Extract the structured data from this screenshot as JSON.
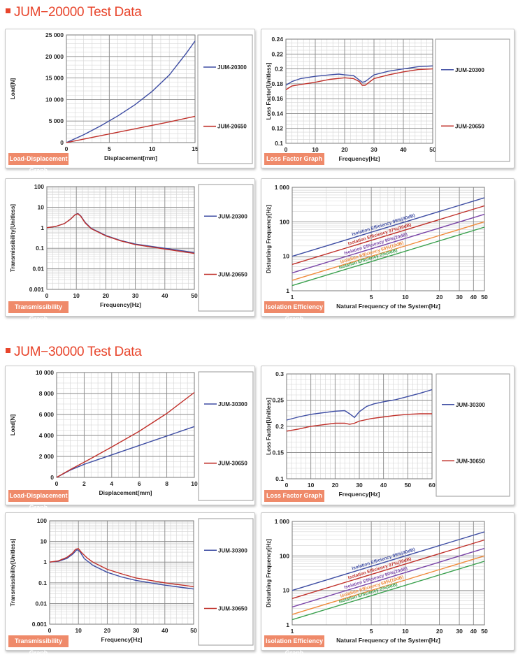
{
  "sections": [
    {
      "title": "JUM−20000 Test Data"
    },
    {
      "title": "JUM−30000 Test Data"
    }
  ],
  "colors": {
    "blue": "#3e4da3",
    "red": "#c0302a",
    "purple": "#7a45a8",
    "orange": "#f08a3a",
    "green": "#39a04d",
    "accent": "#e8452c",
    "tag": "#ef8a6a"
  },
  "chart_data": [
    {
      "id": "c1",
      "type": "line",
      "tag": "Load-Displacement Graph",
      "xscale": "linear",
      "yscale": "linear",
      "xlabel": "Displacement[mm]",
      "ylabel": "Load[N]",
      "xlim": [
        0,
        15
      ],
      "ylim": [
        0,
        25000
      ],
      "xticks": [
        0,
        5,
        10,
        15
      ],
      "xtick_labels": [
        "0",
        "5",
        "10",
        "15"
      ],
      "yticks": [
        0,
        5000,
        10000,
        15000,
        20000,
        25000
      ],
      "ytick_labels": [
        "0",
        "5 000",
        "10 000",
        "15 000",
        "20 000",
        "25 000"
      ],
      "minor_x": 1,
      "minor_y": 1000,
      "series": [
        {
          "name": "JUM-20300",
          "color": "#3e4da3",
          "x": [
            0,
            2,
            4,
            6,
            8,
            10,
            12,
            14,
            15
          ],
          "y": [
            0,
            1800,
            3900,
            6200,
            8800,
            11900,
            15700,
            20800,
            23600
          ]
        },
        {
          "name": "JUM-20650",
          "color": "#c0302a",
          "x": [
            0,
            3,
            6,
            9,
            12,
            15
          ],
          "y": [
            0,
            1200,
            2400,
            3600,
            4800,
            6100
          ]
        }
      ],
      "legend": [
        "JUM-20300",
        "JUM-20650"
      ]
    },
    {
      "id": "c2",
      "type": "line",
      "tag": "Loss Factor Graph",
      "xscale": "linear",
      "yscale": "linear",
      "xlabel": "Frequency[Hz]",
      "ylabel": "Loss Factor[Unitless]",
      "xlim": [
        0,
        50
      ],
      "ylim": [
        0.1,
        0.24
      ],
      "xticks": [
        0,
        10,
        20,
        30,
        40,
        50
      ],
      "xtick_labels": [
        "0",
        "10",
        "20",
        "30",
        "40",
        "50"
      ],
      "yticks": [
        0.1,
        0.12,
        0.14,
        0.16,
        0.18,
        0.2,
        0.22,
        0.24
      ],
      "ytick_labels": [
        "0.1",
        "0.12",
        "0.14",
        "0.16",
        "0.18",
        "0.2",
        "0.22",
        "0.24"
      ],
      "minor_x": 2,
      "minor_y": 0.005,
      "series": [
        {
          "name": "JUM-20300",
          "color": "#3e4da3",
          "x": [
            0,
            2,
            5,
            10,
            15,
            18,
            20,
            23,
            25,
            26,
            27,
            28,
            30,
            35,
            40,
            45,
            50
          ],
          "y": [
            0.178,
            0.183,
            0.187,
            0.19,
            0.192,
            0.193,
            0.192,
            0.191,
            0.185,
            0.182,
            0.183,
            0.186,
            0.192,
            0.197,
            0.2,
            0.203,
            0.204
          ]
        },
        {
          "name": "JUM-20650",
          "color": "#c0302a",
          "x": [
            0,
            2,
            5,
            10,
            15,
            20,
            23,
            25,
            26,
            27,
            28,
            30,
            35,
            40,
            45,
            50
          ],
          "y": [
            0.172,
            0.177,
            0.179,
            0.182,
            0.186,
            0.188,
            0.187,
            0.183,
            0.178,
            0.178,
            0.181,
            0.187,
            0.192,
            0.196,
            0.199,
            0.2
          ]
        }
      ],
      "legend": [
        "JUM-20300",
        "JUM-20650"
      ]
    },
    {
      "id": "c3",
      "type": "line",
      "tag": "Transmissibility Graph",
      "xscale": "linear",
      "yscale": "log",
      "xlabel": "Frequency[Hz]",
      "ylabel": "Transmissibility[Unitless]",
      "xlim": [
        0,
        50
      ],
      "ylim": [
        0.001,
        100
      ],
      "xticks": [
        0,
        10,
        20,
        30,
        40,
        50
      ],
      "xtick_labels": [
        "0",
        "10",
        "20",
        "30",
        "40",
        "50"
      ],
      "yticks": [
        0.001,
        0.01,
        0.1,
        1,
        10,
        100
      ],
      "ytick_labels": [
        "0.001",
        "0.01",
        "0.1",
        "1",
        "10",
        "100"
      ],
      "minor_x": 2,
      "series": [
        {
          "name": "JUM-20300",
          "color": "#3e4da3",
          "x": [
            0,
            3,
            6,
            8,
            9.5,
            10.5,
            11.5,
            13,
            15,
            20,
            25,
            30,
            40,
            50
          ],
          "y": [
            1,
            1.15,
            1.6,
            2.6,
            4.2,
            5.0,
            3.8,
            1.8,
            0.95,
            0.42,
            0.24,
            0.16,
            0.1,
            0.062
          ]
        },
        {
          "name": "JUM-20650",
          "color": "#c0302a",
          "x": [
            0,
            3,
            6,
            8,
            9.5,
            10.5,
            11.5,
            13,
            15,
            20,
            25,
            30,
            40,
            50
          ],
          "y": [
            1,
            1.15,
            1.6,
            2.6,
            4.2,
            4.8,
            3.6,
            1.7,
            0.9,
            0.4,
            0.23,
            0.15,
            0.092,
            0.056
          ]
        }
      ],
      "legend": [
        "JUM-20300",
        "JUM-20650"
      ]
    },
    {
      "id": "c4",
      "type": "line",
      "tag": "Isolation Efficiency Graph",
      "xscale": "log",
      "yscale": "log",
      "xlabel": "Natural Frequency of the System[Hz]",
      "ylabel": "Disturbing Frequency[Hz]",
      "xlim": [
        1,
        50
      ],
      "ylim": [
        1,
        1000
      ],
      "xticks": [
        1,
        5,
        10,
        20,
        30,
        40,
        50
      ],
      "xtick_labels": [
        "1",
        "5",
        "10",
        "20",
        "30",
        "40",
        "50"
      ],
      "yticks": [
        1,
        10,
        100,
        1000
      ],
      "ytick_labels": [
        "1",
        "10",
        "100",
        "1 000"
      ],
      "series": [
        {
          "name": "Isolation Efficiency 99%(40dB)",
          "color": "#3e4da3",
          "x": [
            1,
            50
          ],
          "y": [
            10,
            500
          ]
        },
        {
          "name": "Isolation Efficiency 97%(30dB)",
          "color": "#c0302a",
          "x": [
            1,
            50
          ],
          "y": [
            5.8,
            290
          ]
        },
        {
          "name": "Isolation Efficiency 90%(20dB)",
          "color": "#7a45a8",
          "x": [
            1,
            50
          ],
          "y": [
            3.3,
            165
          ]
        },
        {
          "name": "Isolation Efficiency 68%(10dB)",
          "color": "#f08a3a",
          "x": [
            1,
            50
          ],
          "y": [
            2.0,
            100
          ]
        },
        {
          "name": "Isolation Efficiency 0%(0dB)",
          "color": "#39a04d",
          "x": [
            1,
            50
          ],
          "y": [
            1.41,
            70
          ]
        }
      ]
    },
    {
      "id": "c5",
      "type": "line",
      "tag": "Load-Displacement Graph",
      "xscale": "linear",
      "yscale": "linear",
      "xlabel": "Displacement[mm]",
      "ylabel": "Load[N]",
      "xlim": [
        0,
        10
      ],
      "ylim": [
        0,
        10000
      ],
      "xticks": [
        0,
        2,
        4,
        6,
        8,
        10
      ],
      "xtick_labels": [
        "0",
        "2",
        "4",
        "6",
        "8",
        "10"
      ],
      "yticks": [
        0,
        2000,
        4000,
        6000,
        8000,
        10000
      ],
      "ytick_labels": [
        "0",
        "2 000",
        "4 000",
        "6 000",
        "8 000",
        "10 000"
      ],
      "minor_x": 0.5,
      "minor_y": 500,
      "series": [
        {
          "name": "JUM-30300",
          "color": "#3e4da3",
          "x": [
            0,
            1,
            2,
            4,
            6,
            8,
            10
          ],
          "y": [
            0,
            700,
            1250,
            2150,
            3050,
            3950,
            4850
          ]
        },
        {
          "name": "JUM-30650",
          "color": "#c0302a",
          "x": [
            0,
            1,
            2,
            4,
            6,
            8,
            10
          ],
          "y": [
            0,
            750,
            1450,
            2900,
            4400,
            6100,
            8100
          ]
        }
      ],
      "legend": [
        "JUM-30300",
        "JUM-30650"
      ]
    },
    {
      "id": "c6",
      "type": "line",
      "tag": "Loss Factor Graph",
      "xscale": "linear",
      "yscale": "linear",
      "xlabel": "Frequency[Hz]",
      "ylabel": "Loss Factor[Unitless]",
      "xlim": [
        0,
        60
      ],
      "ylim": [
        0.1,
        0.3
      ],
      "xticks": [
        0,
        10,
        20,
        30,
        40,
        50,
        60
      ],
      "xtick_labels": [
        "0",
        "10",
        "20",
        "30",
        "40",
        "50",
        "60"
      ],
      "yticks": [
        0.1,
        0.15,
        0.2,
        0.25,
        0.3
      ],
      "ytick_labels": [
        "0.1",
        "0.15",
        "0.2",
        "0.25",
        "0.3"
      ],
      "minor_x": 2,
      "minor_y": 0.01,
      "series": [
        {
          "name": "JUM-30300",
          "color": "#3e4da3",
          "x": [
            0,
            5,
            10,
            15,
            20,
            24,
            26,
            28,
            30,
            33,
            36,
            40,
            45,
            50,
            55,
            60
          ],
          "y": [
            0.212,
            0.218,
            0.223,
            0.226,
            0.229,
            0.23,
            0.224,
            0.217,
            0.228,
            0.238,
            0.243,
            0.247,
            0.251,
            0.257,
            0.263,
            0.27
          ]
        },
        {
          "name": "JUM-30650",
          "color": "#c0302a",
          "x": [
            0,
            5,
            10,
            15,
            20,
            24,
            26,
            28,
            30,
            35,
            40,
            45,
            50,
            55,
            60
          ],
          "y": [
            0.191,
            0.195,
            0.2,
            0.203,
            0.206,
            0.206,
            0.204,
            0.206,
            0.21,
            0.215,
            0.218,
            0.221,
            0.223,
            0.224,
            0.224
          ]
        }
      ],
      "legend": [
        "JUM-30300",
        "JUM-30650"
      ]
    },
    {
      "id": "c7",
      "type": "line",
      "tag": "Transmissibility Graph",
      "xscale": "linear",
      "yscale": "log",
      "xlabel": "Frequency[Hz]",
      "ylabel": "Transmissibility[Unitless]",
      "xlim": [
        0,
        50
      ],
      "ylim": [
        0.001,
        100
      ],
      "xticks": [
        0,
        10,
        20,
        30,
        40,
        50
      ],
      "xtick_labels": [
        "0",
        "10",
        "20",
        "30",
        "40",
        "50"
      ],
      "yticks": [
        0.001,
        0.01,
        0.1,
        1,
        10,
        100
      ],
      "ytick_labels": [
        "0.001",
        "0.01",
        "0.1",
        "1",
        "10",
        "100"
      ],
      "minor_x": 2,
      "series": [
        {
          "name": "JUM-30300",
          "color": "#3e4da3",
          "x": [
            0,
            3,
            6,
            8,
            9.5,
            10.5,
            12,
            15,
            20,
            25,
            30,
            40,
            50
          ],
          "y": [
            1,
            1.1,
            1.5,
            2.4,
            4.0,
            3.2,
            1.5,
            0.7,
            0.32,
            0.19,
            0.13,
            0.077,
            0.05
          ]
        },
        {
          "name": "JUM-30650",
          "color": "#c0302a",
          "x": [
            0,
            3,
            6,
            8,
            9,
            10,
            11,
            13,
            15,
            20,
            25,
            30,
            40,
            50
          ],
          "y": [
            1,
            1.15,
            1.7,
            2.8,
            4.2,
            4.5,
            3.0,
            1.6,
            1.0,
            0.45,
            0.27,
            0.17,
            0.1,
            0.065
          ]
        }
      ],
      "legend": [
        "JUM-30300",
        "JUM-30650"
      ]
    },
    {
      "id": "c8",
      "type": "line",
      "tag": "Isolation Efficiency Graph",
      "xscale": "log",
      "yscale": "log",
      "xlabel": "Natural Frequency of the System[Hz]",
      "ylabel": "Disturbing Frequency[Hz]",
      "xlim": [
        1,
        50
      ],
      "ylim": [
        1,
        1000
      ],
      "xticks": [
        1,
        5,
        10,
        20,
        30,
        40,
        50
      ],
      "xtick_labels": [
        "1",
        "5",
        "10",
        "20",
        "30",
        "40",
        "50"
      ],
      "yticks": [
        1,
        10,
        100,
        1000
      ],
      "ytick_labels": [
        "1",
        "10",
        "100",
        "1 000"
      ],
      "series": [
        {
          "name": "Isolation Efficiency 99%(40dB)",
          "color": "#3e4da3",
          "x": [
            1,
            50
          ],
          "y": [
            10,
            500
          ]
        },
        {
          "name": "Isolation Efficiency 97%(30dB)",
          "color": "#c0302a",
          "x": [
            1,
            50
          ],
          "y": [
            5.8,
            290
          ]
        },
        {
          "name": "Isolation Efficiency 90%(20dB)",
          "color": "#7a45a8",
          "x": [
            1,
            50
          ],
          "y": [
            3.3,
            165
          ]
        },
        {
          "name": "Isolation Efficiency 68%(10dB)",
          "color": "#f08a3a",
          "x": [
            1,
            50
          ],
          "y": [
            2.0,
            100
          ]
        },
        {
          "name": "Isolation Efficiency 0%(0dB)",
          "color": "#39a04d",
          "x": [
            1,
            50
          ],
          "y": [
            1.41,
            70
          ]
        }
      ]
    }
  ]
}
